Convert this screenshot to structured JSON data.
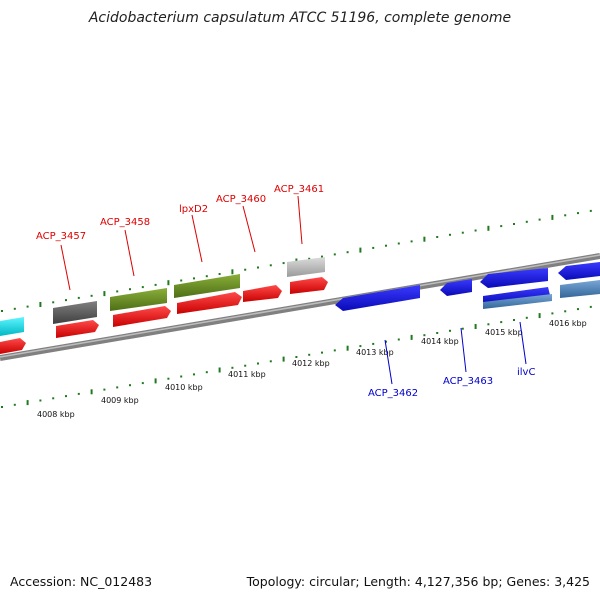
{
  "title": "Acidobacterium capsulatum ATCC 51196, complete genome",
  "accession": "Accession: NC_012483",
  "topology": "Topology: circular; Length: 4,127,356 bp; Genes: 3,425",
  "kbp_labels": [
    "4008 kbp",
    "4009 kbp",
    "4010 kbp",
    "4011 kbp",
    "4012 kbp",
    "4013 kbp",
    "4014 kbp",
    "4015 kbp",
    "4016 kbp"
  ],
  "gene_labels_top": [
    "ACP_3457",
    "ACP_3458",
    "lpxD2",
    "ACP_3460",
    "ACP_3461"
  ],
  "gene_labels_bottom": [
    "ACP_3462",
    "ACP_3463",
    "ilvC"
  ],
  "colors": {
    "forward_cds": "#ee1111",
    "reverse_cds": "#1a1aee",
    "label_red": "#dd0000",
    "label_blue": "#0000cc",
    "olive": "#6b8e23",
    "gray": "#606060",
    "light_gray": "#c0c0c0",
    "cyan": "#00e5ee",
    "steel_blue": "#4a7fb8",
    "tick_green": "#1f7a1f"
  }
}
